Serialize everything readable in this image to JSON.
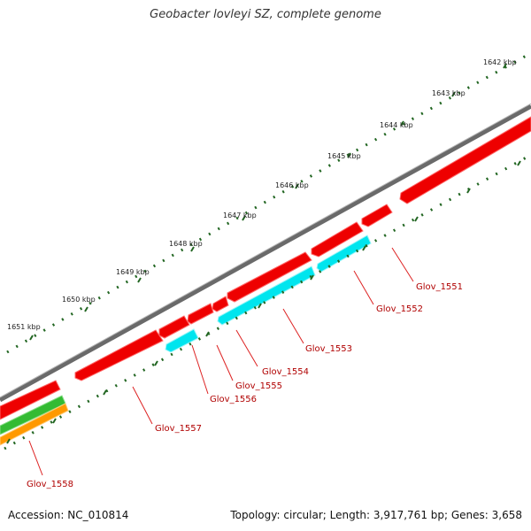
{
  "title": "Geobacter lovleyi SZ, complete genome",
  "accession_text": "Accession: NC_010814",
  "summary_text": "Topology: circular; Length: 3,917,761 bp; Genes: 3,658",
  "kbp_labels": [
    "1642 kbp",
    "1643 kbp",
    "1644 kbp",
    "1645 kbp",
    "1646 kbp",
    "1647 kbp",
    "1648 kbp",
    "1649 kbp",
    "1650 kbp",
    "1651 kbp"
  ],
  "gene_labels": [
    "Glov_1551",
    "Glov_1552",
    "Glov_1553",
    "Glov_1554",
    "Glov_1555",
    "Glov_1556",
    "Glov_1557",
    "Glov_1558"
  ],
  "colors": {
    "backbone": "#808080",
    "forward_gene": "#ee0000",
    "reverse_gene": "#00e5ee",
    "green_track": "#33bb33",
    "orange_track": "#ff9900",
    "tick_dots": "#226622",
    "label_line": "#dd2222"
  }
}
